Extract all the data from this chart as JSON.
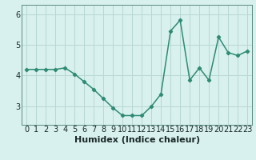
{
  "x": [
    0,
    1,
    2,
    3,
    4,
    5,
    6,
    7,
    8,
    9,
    10,
    11,
    12,
    13,
    14,
    15,
    16,
    17,
    18,
    19,
    20,
    21,
    22,
    23
  ],
  "y": [
    4.2,
    4.2,
    4.2,
    4.2,
    4.25,
    4.05,
    3.8,
    3.55,
    3.25,
    2.95,
    2.7,
    2.7,
    2.7,
    3.0,
    3.4,
    5.45,
    5.8,
    3.85,
    4.25,
    3.85,
    5.25,
    4.75,
    4.65,
    4.8
  ],
  "xlabel": "Humidex (Indice chaleur)",
  "xlim": [
    -0.5,
    23.5
  ],
  "ylim": [
    2.4,
    6.3
  ],
  "yticks": [
    3,
    4,
    5,
    6
  ],
  "xticks": [
    0,
    1,
    2,
    3,
    4,
    5,
    6,
    7,
    8,
    9,
    10,
    11,
    12,
    13,
    14,
    15,
    16,
    17,
    18,
    19,
    20,
    21,
    22,
    23
  ],
  "line_color": "#2e8b74",
  "marker": "D",
  "marker_size": 2.2,
  "bg_color": "#d8f0ee",
  "grid_color": "#b8d8d4",
  "fig_bg": "#d8f0ee",
  "spine_color": "#5a8a80",
  "tick_color": "#1a2a28",
  "xlabel_fontsize": 8,
  "tick_fontsize": 7,
  "line_width": 1.1
}
